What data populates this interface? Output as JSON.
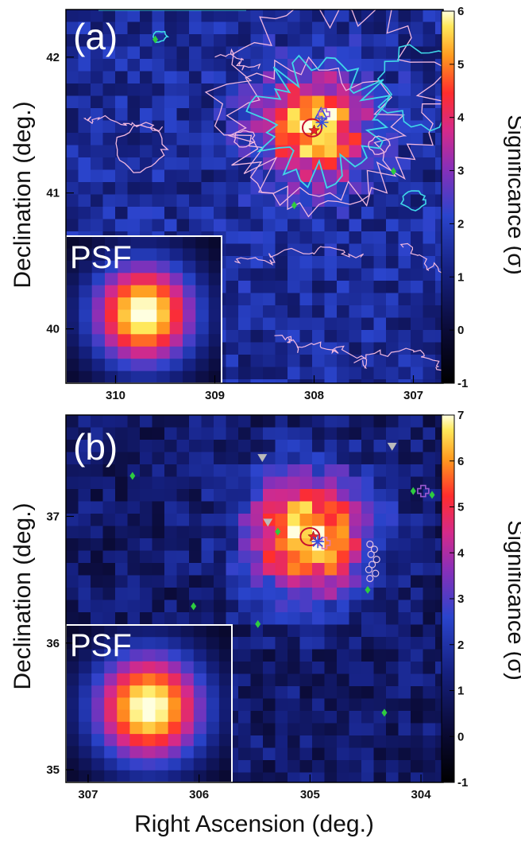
{
  "figure": {
    "xlabel": "Right Ascension (deg.)",
    "ylabel": "Declination (deg.)",
    "colorbar_label": "Significance (σ)",
    "psf_label": "PSF"
  },
  "chart_data": [
    {
      "type": "heatmap",
      "panel_label": "(a)",
      "xlabel": "Right Ascension (deg.)",
      "ylabel": "Declination (deg.)",
      "xlim": [
        310.5,
        306.7
      ],
      "ylim": [
        39.6,
        42.35
      ],
      "x_ticks": [
        310,
        309,
        308,
        307
      ],
      "y_ticks": [
        40,
        41,
        42
      ],
      "colorbar": {
        "label": "Significance (σ)",
        "range": [
          -1,
          6
        ],
        "ticks": [
          -1,
          0,
          1,
          2,
          3,
          4,
          5,
          6
        ]
      },
      "hotspot": {
        "ra": 308.0,
        "dec": 41.48,
        "peak_sigma": 6.0
      },
      "markers": [
        {
          "kind": "star",
          "ra": 308.0,
          "dec": 41.46,
          "color": "#e8242a"
        },
        {
          "kind": "error-ellipse",
          "ra": 308.02,
          "dec": 41.48,
          "color": "#c8102e"
        },
        {
          "kind": "triangle",
          "ra": 307.93,
          "dec": 41.58,
          "color": "#3050e0"
        },
        {
          "kind": "cross",
          "ra": 307.9,
          "dec": 41.58,
          "color": "#9b59d0"
        },
        {
          "kind": "asterisk",
          "ra": 307.92,
          "dec": 41.52,
          "color": "#3050e0"
        },
        {
          "kind": "diamond",
          "ra": 309.6,
          "dec": 42.13,
          "color": "#2ecc40"
        },
        {
          "kind": "diamond",
          "ra": 307.2,
          "dec": 41.16,
          "color": "#2ecc40"
        },
        {
          "kind": "diamond",
          "ra": 308.2,
          "dec": 40.91,
          "color": "#2ecc40"
        }
      ],
      "contours": [
        "cyan",
        "pink"
      ],
      "inset": "PSF"
    },
    {
      "type": "heatmap",
      "panel_label": "(b)",
      "xlabel": "Right Ascension (deg.)",
      "ylabel": "Declination (deg.)",
      "xlim": [
        307.2,
        303.8
      ],
      "ylim": [
        34.9,
        37.8
      ],
      "x_ticks": [
        307,
        306,
        305,
        304
      ],
      "y_ticks": [
        35,
        36,
        37
      ],
      "colorbar": {
        "label": "Significance (σ)",
        "range": [
          -1,
          7
        ],
        "ticks": [
          -1,
          0,
          1,
          2,
          3,
          4,
          5,
          6,
          7
        ]
      },
      "hotspot": {
        "ra": 305.0,
        "dec": 36.85,
        "peak_sigma": 7.0
      },
      "markers": [
        {
          "kind": "star",
          "ra": 304.97,
          "dec": 36.84,
          "color": "#e8242a"
        },
        {
          "kind": "error-ellipse",
          "ra": 305.0,
          "dec": 36.84,
          "color": "#c8102e"
        },
        {
          "kind": "cross",
          "ra": 304.87,
          "dec": 36.79,
          "color": "#e07ab0"
        },
        {
          "kind": "asterisk",
          "ra": 304.93,
          "dec": 36.8,
          "color": "#3050e0"
        },
        {
          "kind": "cross",
          "ra": 303.98,
          "dec": 37.2,
          "color": "#9b59d0"
        },
        {
          "kind": "triangle-down",
          "ra": 305.43,
          "dec": 37.46,
          "color": "#bbbbbb"
        },
        {
          "kind": "triangle-down",
          "ra": 305.38,
          "dec": 36.95,
          "color": "#bbbbbb"
        },
        {
          "kind": "triangle-down",
          "ra": 304.26,
          "dec": 37.55,
          "color": "#bbbbbb"
        },
        {
          "kind": "diamond",
          "ra": 306.6,
          "dec": 37.32,
          "color": "#2ecc40"
        },
        {
          "kind": "diamond",
          "ra": 305.29,
          "dec": 36.88,
          "color": "#2ecc40"
        },
        {
          "kind": "diamond",
          "ra": 306.05,
          "dec": 36.29,
          "color": "#2ecc40"
        },
        {
          "kind": "diamond",
          "ra": 305.47,
          "dec": 36.15,
          "color": "#2ecc40"
        },
        {
          "kind": "diamond",
          "ra": 304.48,
          "dec": 36.42,
          "color": "#2ecc40"
        },
        {
          "kind": "diamond",
          "ra": 304.33,
          "dec": 35.45,
          "color": "#2ecc40"
        },
        {
          "kind": "diamond",
          "ra": 304.07,
          "dec": 37.2,
          "color": "#2ecc40"
        },
        {
          "kind": "diamond",
          "ra": 303.9,
          "dec": 37.17,
          "color": "#2ecc40"
        },
        {
          "kind": "open-circle",
          "ra": 304.46,
          "dec": 36.78,
          "color": "#e0c0e0"
        },
        {
          "kind": "open-circle",
          "ra": 304.42,
          "dec": 36.74,
          "color": "#e0c0e0"
        },
        {
          "kind": "open-circle",
          "ra": 304.45,
          "dec": 36.7,
          "color": "#e0c0e0"
        },
        {
          "kind": "open-circle",
          "ra": 304.4,
          "dec": 36.66,
          "color": "#e0c0e0"
        },
        {
          "kind": "open-circle",
          "ra": 304.44,
          "dec": 36.62,
          "color": "#e0c0e0"
        },
        {
          "kind": "open-circle",
          "ra": 304.47,
          "dec": 36.58,
          "color": "#e0c0e0"
        },
        {
          "kind": "open-circle",
          "ra": 304.41,
          "dec": 36.55,
          "color": "#e0c0e0"
        },
        {
          "kind": "open-circle",
          "ra": 304.46,
          "dec": 36.51,
          "color": "#e0c0e0"
        }
      ],
      "inset": "PSF"
    }
  ]
}
